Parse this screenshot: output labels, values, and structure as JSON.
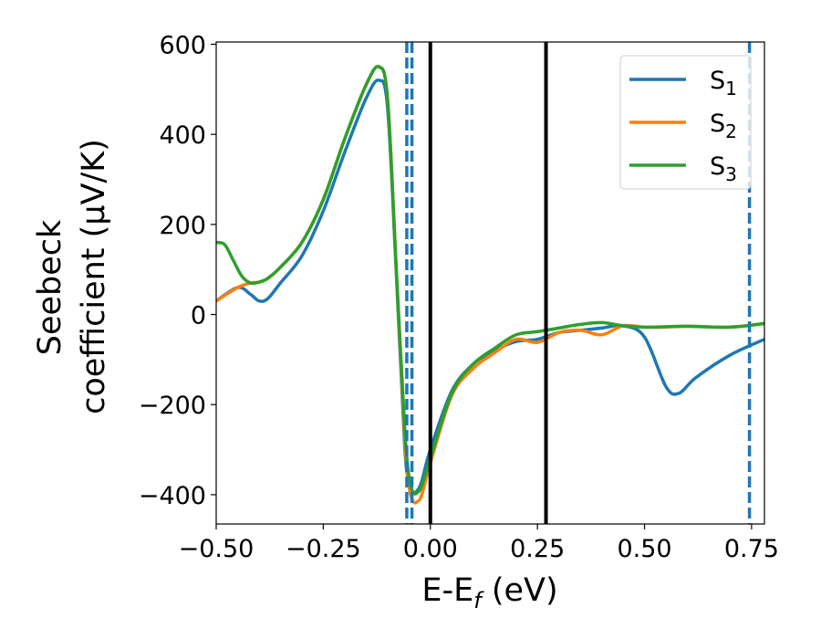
{
  "chart_data": {
    "type": "line",
    "xlabel": "E-E",
    "xlabel_sub": "f",
    "xlabel_unit": " (eV)",
    "ylabel_line1": "Seebeck",
    "ylabel_line2": "coefficient  (μV/K)",
    "xlim": [
      -0.5,
      0.78
    ],
    "ylim": [
      -465,
      605
    ],
    "xticks": [
      -0.5,
      -0.25,
      0.0,
      0.25,
      0.5,
      0.75
    ],
    "xtick_labels": [
      "−0.50",
      "−0.25",
      "0.00",
      "0.25",
      "0.50",
      "0.75"
    ],
    "yticks": [
      -400,
      -200,
      0,
      200,
      400,
      600
    ],
    "ytick_labels": [
      "−400",
      "−200",
      "0",
      "200",
      "400",
      "600"
    ],
    "grid": false,
    "legend_position": "top-right",
    "vlines": [
      {
        "x": -0.055,
        "style": "dashed",
        "color": "#1f77b4"
      },
      {
        "x": -0.043,
        "style": "dashed",
        "color": "#1f77b4"
      },
      {
        "x": 0.0,
        "style": "solid",
        "color": "#000000"
      },
      {
        "x": 0.27,
        "style": "solid",
        "color": "#000000"
      },
      {
        "x": 0.745,
        "style": "dashed",
        "color": "#1f77b4"
      }
    ],
    "series": [
      {
        "name": "S",
        "sub": "1",
        "color": "#1f77b4",
        "x": [
          -0.5,
          -0.45,
          -0.42,
          -0.4,
          -0.38,
          -0.35,
          -0.3,
          -0.25,
          -0.2,
          -0.15,
          -0.12,
          -0.1,
          -0.08,
          -0.06,
          -0.05,
          -0.04,
          -0.03,
          -0.02,
          0.0,
          0.05,
          0.1,
          0.15,
          0.2,
          0.25,
          0.3,
          0.35,
          0.4,
          0.45,
          0.5,
          0.55,
          0.58,
          0.62,
          0.7,
          0.78
        ],
        "y": [
          30,
          60,
          45,
          30,
          35,
          70,
          130,
          230,
          360,
          480,
          520,
          460,
          100,
          -290,
          -370,
          -395,
          -390,
          -370,
          -300,
          -170,
          -110,
          -80,
          -60,
          -55,
          -40,
          -35,
          -30,
          -25,
          -50,
          -160,
          -175,
          -140,
          -90,
          -55
        ]
      },
      {
        "name": "S",
        "sub": "2",
        "color": "#ff7f0e",
        "x": [
          -0.5,
          -0.45,
          -0.42,
          -0.4,
          -0.38,
          -0.35,
          -0.3,
          -0.25,
          -0.2,
          -0.15,
          -0.12,
          -0.1,
          -0.08,
          -0.06,
          -0.05,
          -0.04,
          -0.03,
          -0.02,
          0.0,
          0.05,
          0.1,
          0.15,
          0.2,
          0.25,
          0.3,
          0.35,
          0.4,
          0.45,
          0.5,
          0.55,
          0.6,
          0.7,
          0.78
        ],
        "y": [
          30,
          60,
          70,
          72,
          80,
          105,
          160,
          255,
          390,
          510,
          550,
          480,
          110,
          -270,
          -380,
          -415,
          -415,
          -400,
          -330,
          -180,
          -120,
          -85,
          -55,
          -62,
          -40,
          -35,
          -45,
          -25,
          -28,
          -28,
          -26,
          -28,
          -20
        ]
      },
      {
        "name": "S",
        "sub": "3",
        "color": "#2ca02c",
        "x": [
          -0.5,
          -0.48,
          -0.46,
          -0.44,
          -0.42,
          -0.4,
          -0.38,
          -0.35,
          -0.3,
          -0.25,
          -0.2,
          -0.15,
          -0.12,
          -0.1,
          -0.08,
          -0.06,
          -0.05,
          -0.04,
          -0.03,
          -0.02,
          0.0,
          0.05,
          0.1,
          0.15,
          0.2,
          0.25,
          0.3,
          0.35,
          0.4,
          0.45,
          0.5,
          0.55,
          0.6,
          0.7,
          0.78
        ],
        "y": [
          160,
          155,
          120,
          85,
          70,
          72,
          80,
          105,
          160,
          255,
          390,
          510,
          550,
          480,
          110,
          -250,
          -360,
          -395,
          -395,
          -380,
          -320,
          -175,
          -110,
          -75,
          -45,
          -38,
          -30,
          -22,
          -18,
          -25,
          -28,
          -27,
          -26,
          -28,
          -20
        ]
      }
    ]
  }
}
